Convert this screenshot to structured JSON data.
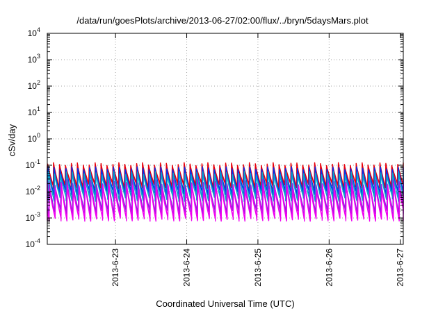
{
  "chart_data": {
    "type": "line",
    "title": "/data/run/goesPlots/archive/2013-06-27/02:00/flux/../bryn/5daysMars.plot",
    "xlabel": "Coordinated Universal Time (UTC)",
    "ylabel": "cSv/day",
    "y_scale": "log",
    "ylim": [
      0.0001,
      10000
    ],
    "xlim": [
      "2013-06-22 01:00",
      "2013-06-27 01:00"
    ],
    "y_ticks": [
      {
        "base": "10",
        "exp": "-4"
      },
      {
        "base": "10",
        "exp": "-3"
      },
      {
        "base": "10",
        "exp": "-2"
      },
      {
        "base": "10",
        "exp": "-1"
      },
      {
        "base": "10",
        "exp": "0"
      },
      {
        "base": "10",
        "exp": "1"
      },
      {
        "base": "10",
        "exp": "2"
      },
      {
        "base": "10",
        "exp": "3"
      },
      {
        "base": "10",
        "exp": "4"
      }
    ],
    "x_ticks": [
      "2013-6-23",
      "2013-6-24",
      "2013-6-25",
      "2013-6-26",
      "2013-6-27"
    ],
    "grid": true,
    "legend": "none",
    "sol_period_hours": 2.0,
    "series": [
      {
        "color": "#e8000b",
        "values_peak": [
          0.1,
          0.13
        ],
        "values_trough": [
          0.014,
          0.022
        ]
      },
      {
        "color": "#0032f0",
        "values_peak": [
          0.07,
          0.09
        ],
        "values_trough": [
          0.008,
          0.012
        ]
      },
      {
        "color": "#0aa6c8",
        "values_peak": [
          0.045,
          0.06
        ],
        "values_trough": [
          0.0045,
          0.007
        ]
      },
      {
        "color": "#9020e0",
        "values_peak": [
          0.018,
          0.03
        ],
        "values_trough": [
          0.0015,
          0.0022
        ]
      },
      {
        "color": "#f000f0",
        "values_peak": [
          0.012,
          0.022
        ],
        "values_trough": [
          0.0008,
          0.0011
        ]
      }
    ]
  }
}
